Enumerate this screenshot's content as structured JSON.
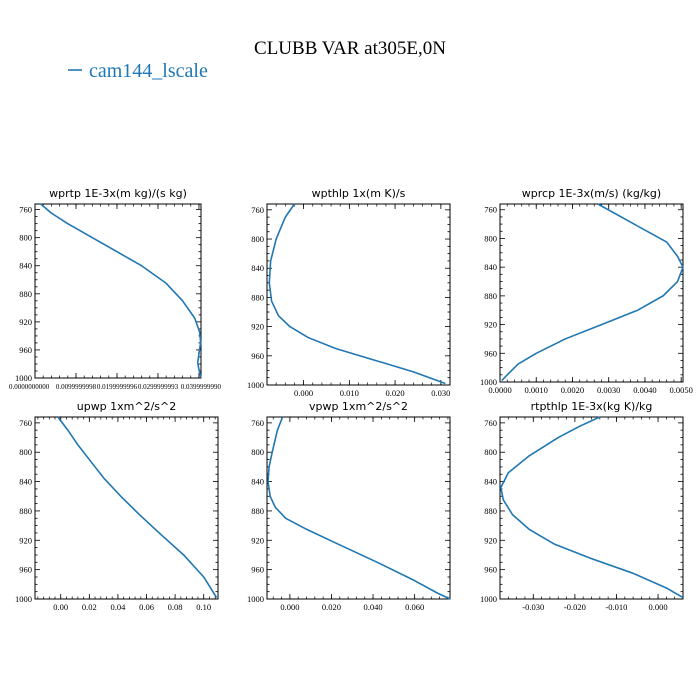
{
  "figure": {
    "title": "CLUBB VAR at305E,0N",
    "legend_label": "cam144_lscale",
    "line_color": "#1f77b4"
  },
  "chart_data": [
    {
      "type": "line",
      "title": "wprtp  1E-3x(m kg)/(s kg)",
      "xlim": [
        0.0,
        0.0405
      ],
      "ylim": [
        1000,
        752
      ],
      "xticks": [
        0.0,
        0.01,
        0.02,
        0.03,
        0.04
      ],
      "xtick_labels": [
        "0.0000000000",
        "0.0099999998",
        "0.0199999996",
        "0.0299999993",
        "0.0399999990"
      ],
      "yticks": [
        760,
        800,
        840,
        880,
        920,
        960,
        1000
      ],
      "series": [
        {
          "x": [
            0.0014,
            0.004,
            0.008,
            0.014,
            0.02,
            0.026,
            0.032,
            0.036,
            0.039,
            0.0402,
            0.0404,
            0.04,
            0.0397,
            0.04,
            0.0403,
            0.0405
          ],
          "y": [
            752,
            765,
            780,
            800,
            820,
            840,
            865,
            890,
            915,
            935,
            950,
            965,
            978,
            988,
            995,
            1000
          ]
        }
      ]
    },
    {
      "type": "line",
      "title": "wpthlp  1x(m K)/s",
      "xlim": [
        -0.008,
        0.032
      ],
      "ylim": [
        1000,
        752
      ],
      "xticks": [
        0.0,
        0.01,
        0.02,
        0.03
      ],
      "xtick_labels": [
        "0.000",
        "0.010",
        "0.020",
        "0.030"
      ],
      "yticks": [
        760,
        800,
        840,
        880,
        920,
        960,
        1000
      ],
      "series": [
        {
          "x": [
            -0.002,
            -0.004,
            -0.006,
            -0.0072,
            -0.0075,
            -0.007,
            -0.0055,
            -0.003,
            0.001,
            0.007,
            0.015,
            0.024,
            0.031
          ],
          "y": [
            752,
            770,
            800,
            830,
            860,
            885,
            905,
            920,
            935,
            950,
            965,
            982,
            998
          ]
        }
      ]
    },
    {
      "type": "line",
      "title": "wprcp  1E-3x(m/s) (kg/kg)",
      "xlim": [
        0.0,
        0.00505
      ],
      "ylim": [
        1000,
        752
      ],
      "xticks": [
        0.0,
        0.001,
        0.002,
        0.003,
        0.004,
        0.005
      ],
      "xtick_labels": [
        "0.0000",
        "0.0010",
        "0.0020",
        "0.0030",
        "0.0040",
        "0.0050"
      ],
      "yticks": [
        760,
        800,
        840,
        880,
        920,
        960,
        1000
      ],
      "series": [
        {
          "x": [
            0.0027,
            0.0037,
            0.0046,
            0.0049,
            0.00505,
            0.0049,
            0.0045,
            0.0038,
            0.0028,
            0.0018,
            0.001,
            0.0005,
            0.0002,
            5e-05
          ],
          "y": [
            752,
            780,
            805,
            825,
            840,
            860,
            880,
            900,
            920,
            940,
            960,
            975,
            990,
            998
          ]
        }
      ]
    },
    {
      "type": "line",
      "title": "upwp   1xm^2/s^2",
      "xlim": [
        -0.018,
        0.11
      ],
      "ylim": [
        1000,
        752
      ],
      "xticks": [
        0.0,
        0.02,
        0.04,
        0.06,
        0.08,
        0.1
      ],
      "xtick_labels": [
        "0.00",
        "0.02",
        "0.04",
        "0.06",
        "0.08",
        "0.10"
      ],
      "yticks": [
        760,
        800,
        840,
        880,
        920,
        960,
        1000
      ],
      "series": [
        {
          "x": [
            -0.002,
            0.005,
            0.012,
            0.02,
            0.03,
            0.042,
            0.055,
            0.07,
            0.086,
            0.1,
            0.109
          ],
          "y": [
            752,
            770,
            790,
            810,
            835,
            860,
            885,
            912,
            940,
            970,
            998
          ]
        }
      ]
    },
    {
      "type": "line",
      "title": "vpwp   1xm^2/s^2",
      "xlim": [
        -0.011,
        0.077
      ],
      "ylim": [
        1000,
        752
      ],
      "xticks": [
        0.0,
        0.02,
        0.04,
        0.06
      ],
      "xtick_labels": [
        "0.000",
        "0.020",
        "0.040",
        "0.060"
      ],
      "yticks": [
        760,
        800,
        840,
        880,
        920,
        960,
        1000
      ],
      "series": [
        {
          "x": [
            -0.0035,
            -0.006,
            -0.0085,
            -0.01,
            -0.0105,
            -0.0095,
            -0.007,
            -0.002,
            0.008,
            0.023,
            0.042,
            0.06,
            0.071,
            0.077
          ],
          "y": [
            752,
            770,
            800,
            820,
            840,
            860,
            875,
            890,
            905,
            925,
            950,
            975,
            992,
            1000
          ]
        }
      ]
    },
    {
      "type": "line",
      "title": "rtpthlp  1E-3x(kg K)/kg",
      "xlim": [
        -0.038,
        0.006
      ],
      "ylim": [
        1000,
        752
      ],
      "xticks": [
        -0.03,
        -0.02,
        -0.01,
        0.0
      ],
      "xtick_labels": [
        "-0.030",
        "-0.020",
        "-0.010",
        "0.000"
      ],
      "yticks": [
        760,
        800,
        840,
        880,
        920,
        960,
        1000
      ],
      "series": [
        {
          "x": [
            -0.014,
            -0.019,
            -0.024,
            -0.031,
            -0.036,
            -0.0378,
            -0.0372,
            -0.035,
            -0.031,
            -0.025,
            -0.016,
            -0.006,
            0.002,
            0.006
          ],
          "y": [
            752,
            765,
            780,
            805,
            828,
            848,
            865,
            885,
            905,
            925,
            945,
            965,
            985,
            998
          ]
        }
      ]
    }
  ]
}
